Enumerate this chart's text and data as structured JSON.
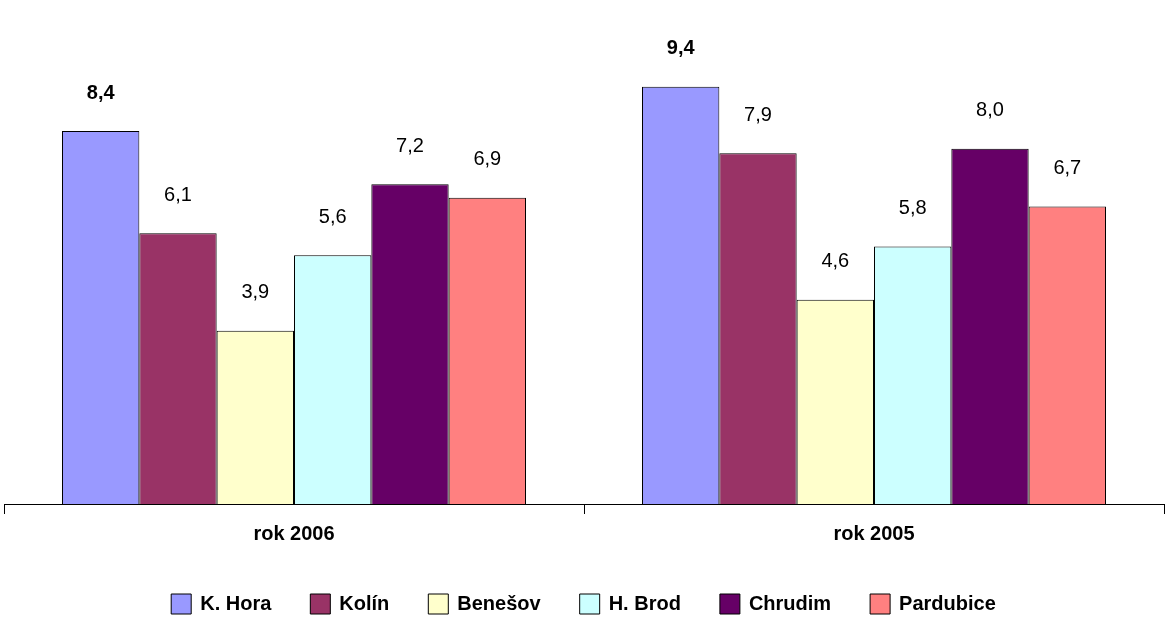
{
  "chart_data": {
    "type": "bar",
    "categories": [
      "rok 2006",
      "rok 2005"
    ],
    "series": [
      {
        "name": "K. Hora",
        "color": "#9999ff",
        "values": [
          8.4,
          9.4
        ],
        "value_labels": [
          "8,4",
          "9,4"
        ]
      },
      {
        "name": "Kolín",
        "color": "#993366",
        "values": [
          6.1,
          7.9
        ],
        "value_labels": [
          "6,1",
          "7,9"
        ]
      },
      {
        "name": "Benešov",
        "color": "#ffffcc",
        "values": [
          3.9,
          4.6
        ],
        "value_labels": [
          "3,9",
          "4,6"
        ]
      },
      {
        "name": "H. Brod",
        "color": "#ccffff",
        "values": [
          5.6,
          5.8
        ],
        "value_labels": [
          "5,6",
          "5,8"
        ]
      },
      {
        "name": "Chrudim",
        "color": "#660066",
        "values": [
          7.2,
          8.0
        ],
        "value_labels": [
          "7,2",
          "8,0"
        ]
      },
      {
        "name": "Pardubice",
        "color": "#ff8080",
        "values": [
          6.9,
          6.7
        ],
        "value_labels": [
          "6,9",
          "6,7"
        ]
      }
    ],
    "grid": false,
    "legend": "bottom"
  }
}
